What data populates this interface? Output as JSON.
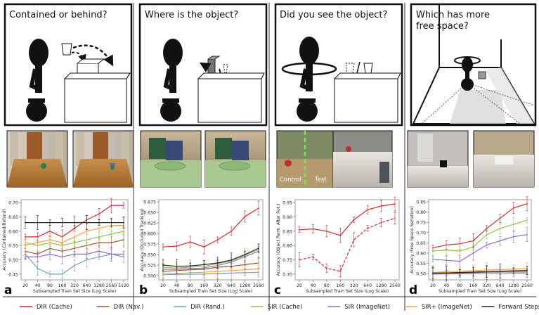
{
  "panels": [
    {
      "letter": "a",
      "question": "Contained or behind?",
      "chart_label": "Accuracy (Contained/Behind)",
      "photo_labels": [],
      "chart_data": {
        "type": "line",
        "title": "",
        "xlabel": "Subsampled Train Set Size (Log Scale)",
        "ylabel": "Accuracy (Contained/Behind)",
        "xscale": "log",
        "x": [
          20,
          40,
          80,
          160,
          320,
          640,
          1280,
          2560,
          5120
        ],
        "xticks": [
          "20",
          "40",
          "80",
          "160",
          "320",
          "640",
          "1280",
          "2560",
          "5120"
        ],
        "ylim": [
          0.43,
          0.71
        ],
        "yticks": [
          "0.45",
          "0.50",
          "0.55",
          "0.60",
          "0.65",
          "0.70"
        ],
        "series": [
          {
            "name": "DIR (Cache)",
            "values": [
              0.58,
              0.58,
              0.6,
              0.58,
              0.61,
              0.64,
              0.66,
              0.69,
              0.69
            ]
          },
          {
            "name": "DIR (Nav.)",
            "values": [
              0.53,
              0.52,
              0.54,
              0.53,
              0.54,
              0.55,
              0.56,
              0.56,
              0.57
            ]
          },
          {
            "name": "DIR (Rand.)",
            "values": [
              0.52,
              0.47,
              0.45,
              0.45,
              0.48,
              0.5,
              0.51,
              0.52,
              0.51
            ]
          },
          {
            "name": "SIR (Cache)",
            "values": [
              0.56,
              0.55,
              0.56,
              0.55,
              0.56,
              0.57,
              0.58,
              0.59,
              0.6
            ]
          },
          {
            "name": "SIR (ImageNet)",
            "values": [
              0.51,
              0.51,
              0.52,
              0.51,
              0.52,
              0.52,
              0.53,
              0.52,
              0.52
            ]
          },
          {
            "name": "SIR+ (ImageNet)",
            "values": [
              0.55,
              0.56,
              0.57,
              0.56,
              0.58,
              0.6,
              0.61,
              0.62,
              0.62
            ]
          },
          {
            "name": "Forward Steps",
            "values": [
              0.63,
              0.63,
              0.63,
              0.63,
              0.63,
              0.63,
              0.63,
              0.63,
              0.63
            ]
          }
        ]
      }
    },
    {
      "letter": "b",
      "question": "Where is the object?",
      "chart_label": "Accuracy (Occluded Tracking)",
      "photo_labels": [],
      "chart_data": {
        "type": "line",
        "title": "",
        "xlabel": "Subsampled Train Set Size (Log Scale)",
        "ylabel": "Accuracy (Occluded Tracking)",
        "xscale": "log",
        "x": [
          20,
          40,
          80,
          160,
          320,
          640,
          1280,
          2560
        ],
        "xticks": [
          "20",
          "40",
          "80",
          "160",
          "320",
          "640",
          "1280",
          "2560"
        ],
        "ylim": [
          0.49,
          0.68
        ],
        "yticks": [
          "0.500",
          "0.525",
          "0.550",
          "0.575",
          "0.600",
          "0.625",
          "0.650",
          "0.675"
        ],
        "series": [
          {
            "name": "DIR (Cache)",
            "values": [
              0.568,
              0.57,
              0.58,
              0.568,
              0.585,
              0.605,
              0.64,
              0.66
            ]
          },
          {
            "name": "DIR (Nav.)",
            "values": [
              0.51,
              0.512,
              0.514,
              0.515,
              0.52,
              0.522,
              0.526,
              0.53
            ]
          },
          {
            "name": "DIR (Rand.)",
            "values": [
              0.502,
              0.503,
              0.503,
              0.504,
              0.505,
              0.506,
              0.507,
              0.508
            ]
          },
          {
            "name": "SIR (Cache)",
            "values": [
              0.52,
              0.518,
              0.52,
              0.522,
              0.528,
              0.535,
              0.548,
              0.562
            ]
          },
          {
            "name": "SIR (ImageNet)",
            "values": [
              0.515,
              0.515,
              0.517,
              0.518,
              0.524,
              0.532,
              0.545,
              0.558
            ]
          },
          {
            "name": "SIR+ (ImageNet)",
            "values": [
              0.505,
              0.505,
              0.507,
              0.508,
              0.51,
              0.512,
              0.514,
              0.516
            ]
          },
          {
            "name": "Forward Steps",
            "values": [
              0.525,
              0.522,
              0.523,
              0.526,
              0.53,
              0.537,
              0.55,
              0.565
            ]
          }
        ]
      }
    },
    {
      "letter": "c",
      "question": "Did you see the object?",
      "chart_label": "Accuracy (Object Perm. After Rot.)",
      "photo_labels": [
        "Control",
        "Test"
      ],
      "chart_data": {
        "type": "line",
        "title": "",
        "xlabel": "Subsampled Train Set Size (Log Scale)",
        "ylabel": "Accuracy (Object Perm. After Rot.)",
        "xscale": "log",
        "x": [
          20,
          40,
          80,
          160,
          320,
          640,
          1280,
          2560
        ],
        "xticks": [
          "20",
          "40",
          "80",
          "160",
          "320",
          "640",
          "1280",
          "2560"
        ],
        "ylim": [
          0.68,
          0.96
        ],
        "yticks": [
          "0.70",
          "0.75",
          "0.80",
          "0.85",
          "0.90",
          "0.95"
        ],
        "series": [
          {
            "name": "DIR (Cache)",
            "style": "solid",
            "values": [
              0.855,
              0.858,
              0.85,
              0.835,
              0.89,
              0.925,
              0.938,
              0.945
            ]
          },
          {
            "name": "DIR (Cache)",
            "style": "dashed",
            "values": [
              0.75,
              0.76,
              0.72,
              0.71,
              0.82,
              0.86,
              0.88,
              0.895
            ]
          }
        ]
      }
    },
    {
      "letter": "d",
      "question": "Which has more free space?",
      "chart_label": "Accuracy (Free Space Seriation)",
      "photo_labels": [],
      "chart_data": {
        "type": "line",
        "title": "",
        "xlabel": "Subsampled Train Set Size (Log Scale)",
        "ylabel": "Accuracy (Free Space Seriation)",
        "xscale": "log",
        "x": [
          20,
          40,
          80,
          160,
          320,
          640,
          1280,
          2560
        ],
        "xticks": [
          "20",
          "40",
          "80",
          "160",
          "320",
          "640",
          "1280",
          "2560"
        ],
        "ylim": [
          0.47,
          0.86
        ],
        "yticks": [
          "0.50",
          "0.55",
          "0.60",
          "0.65",
          "0.70",
          "0.75",
          "0.80",
          "0.85"
        ],
        "series": [
          {
            "name": "DIR (Cache)",
            "values": [
              0.625,
              0.64,
              0.645,
              0.66,
              0.72,
              0.77,
              0.82,
              0.84
            ]
          },
          {
            "name": "DIR (Nav.)",
            "values": [
              0.5,
              0.502,
              0.503,
              0.505,
              0.507,
              0.508,
              0.508,
              0.508
            ]
          },
          {
            "name": "DIR (Rand.)",
            "values": [
              0.498,
              0.498,
              0.499,
              0.499,
              0.5,
              0.5,
              0.5,
              0.501
            ]
          },
          {
            "name": "SIR (Cache)",
            "values": [
              0.61,
              0.615,
              0.61,
              0.63,
              0.69,
              0.72,
              0.74,
              0.76
            ]
          },
          {
            "name": "SIR (ImageNet)",
            "values": [
              0.57,
              0.565,
              0.56,
              0.6,
              0.64,
              0.66,
              0.68,
              0.69
            ]
          },
          {
            "name": "SIR+ (ImageNet)",
            "values": [
              0.505,
              0.51,
              0.512,
              0.515,
              0.518,
              0.52,
              0.522,
              0.525
            ]
          },
          {
            "name": "Forward Steps",
            "values": [
              0.503,
              0.504,
              0.506,
              0.508,
              0.51,
              0.512,
              0.514,
              0.516
            ]
          }
        ]
      }
    }
  ],
  "legend": [
    {
      "label": "DIR (Cache)",
      "color": "#d62728"
    },
    {
      "label": "DIR (Nav.)",
      "color": "#a0522d"
    },
    {
      "label": "DIR (Rand.)",
      "color": "#6a9fd0"
    },
    {
      "label": "SIR (Cache)",
      "color": "#8bc34a"
    },
    {
      "label": "SIR (ImageNet)",
      "color": "#8e6bc7"
    },
    {
      "label": "SIR+ (ImageNet)",
      "color": "#ff9f40"
    },
    {
      "label": "Forward Steps",
      "color": "#222222"
    }
  ]
}
